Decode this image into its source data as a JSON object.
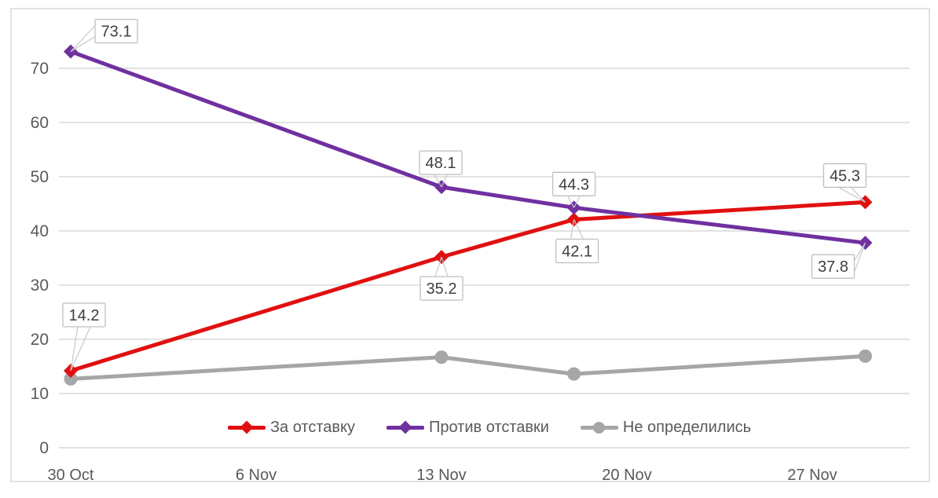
{
  "chart_data": {
    "type": "line",
    "title": "",
    "xlabel": "",
    "ylabel": "",
    "grid": true,
    "legend_position": "bottom-center",
    "x_axis": {
      "tick_labels": [
        "30 Oct",
        "6 Nov",
        "13 Nov",
        "20 Nov",
        "27 Nov"
      ],
      "tick_days": [
        0,
        7,
        14,
        21,
        28
      ]
    },
    "y_axis": {
      "ticks": [
        0,
        10,
        20,
        30,
        40,
        50,
        60,
        70
      ],
      "range": [
        0,
        78
      ]
    },
    "x_days": [
      0,
      14,
      19,
      30
    ],
    "series": [
      {
        "name": "За отставку",
        "color": "#e01010",
        "marker": "diamond",
        "values": [
          14.2,
          35.2,
          42.1,
          45.3
        ],
        "data_labels": true,
        "label_texts": [
          "14.2",
          "35.2",
          "42.1",
          "45.3"
        ],
        "label_offsets": [
          [
            17,
            -71
          ],
          [
            0,
            40
          ],
          [
            4,
            40
          ],
          [
            -26,
            -34
          ]
        ]
      },
      {
        "name": "Против отставки",
        "color": "#7030a0",
        "marker": "diamond",
        "values": [
          73.1,
          48.1,
          44.3,
          37.8
        ],
        "data_labels": true,
        "label_texts": [
          "73.1",
          "48.1",
          "44.3",
          "37.8"
        ],
        "label_offsets": [
          [
            58,
            -26
          ],
          [
            -1,
            -31
          ],
          [
            0,
            -30
          ],
          [
            -41,
            30
          ]
        ]
      },
      {
        "name": "Не определились",
        "color": "#a6a6a6",
        "marker": "circle",
        "values": [
          12.7,
          16.7,
          13.6,
          16.9
        ],
        "data_labels": false,
        "label_texts": [],
        "label_offsets": []
      }
    ]
  },
  "colors": {
    "background": "#ffffff",
    "frame": "#d9d9d9",
    "gridline": "#d9d9d9",
    "axis_text": "#595959",
    "label_text": "#3f3f3f",
    "label_border": "#bfbfbf",
    "leader": "#c9c9c9"
  }
}
